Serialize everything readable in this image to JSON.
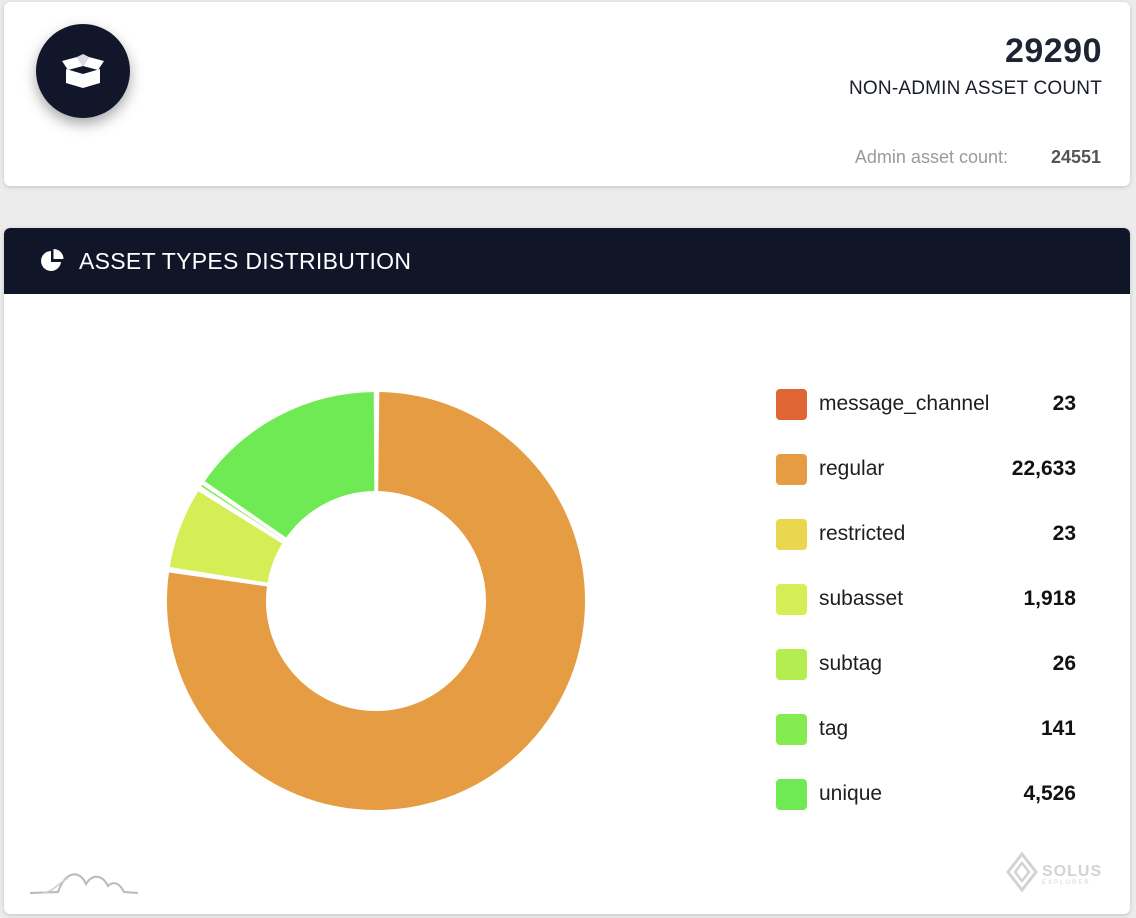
{
  "summary": {
    "icon": "box-open-icon",
    "non_admin_count": "29290",
    "non_admin_label": "NON-ADMIN ASSET COUNT",
    "admin_label": "Admin asset count:",
    "admin_value": "24551"
  },
  "distribution": {
    "header_icon": "pie-chart-icon",
    "title": "ASSET TYPES DISTRIBUTION"
  },
  "chart_data": {
    "type": "pie",
    "categories": [
      "message_channel",
      "regular",
      "restricted",
      "subasset",
      "subtag",
      "tag",
      "unique"
    ],
    "values": [
      23,
      22633,
      23,
      1918,
      26,
      141,
      4526
    ],
    "value_labels": [
      "23",
      "22,633",
      "23",
      "1,918",
      "26",
      "141",
      "4,526"
    ],
    "colors": [
      "#e06535",
      "#e59c42",
      "#ebd64f",
      "#d6ee55",
      "#b4ed50",
      "#84ec51",
      "#6fea55"
    ],
    "legend": "right"
  },
  "legend": {
    "items": [
      {
        "label": "message_channel",
        "value": "23"
      },
      {
        "label": "regular",
        "value": "22,633"
      },
      {
        "label": "restricted",
        "value": "23"
      },
      {
        "label": "subasset",
        "value": "1,918"
      },
      {
        "label": "subtag",
        "value": "26"
      },
      {
        "label": "tag",
        "value": "141"
      },
      {
        "label": "unique",
        "value": "4,526"
      }
    ]
  },
  "footer": {
    "logo_right_name": "SOLUS",
    "logo_right_sub": "EXPLORER",
    "logo_left": "mountain-logo"
  }
}
